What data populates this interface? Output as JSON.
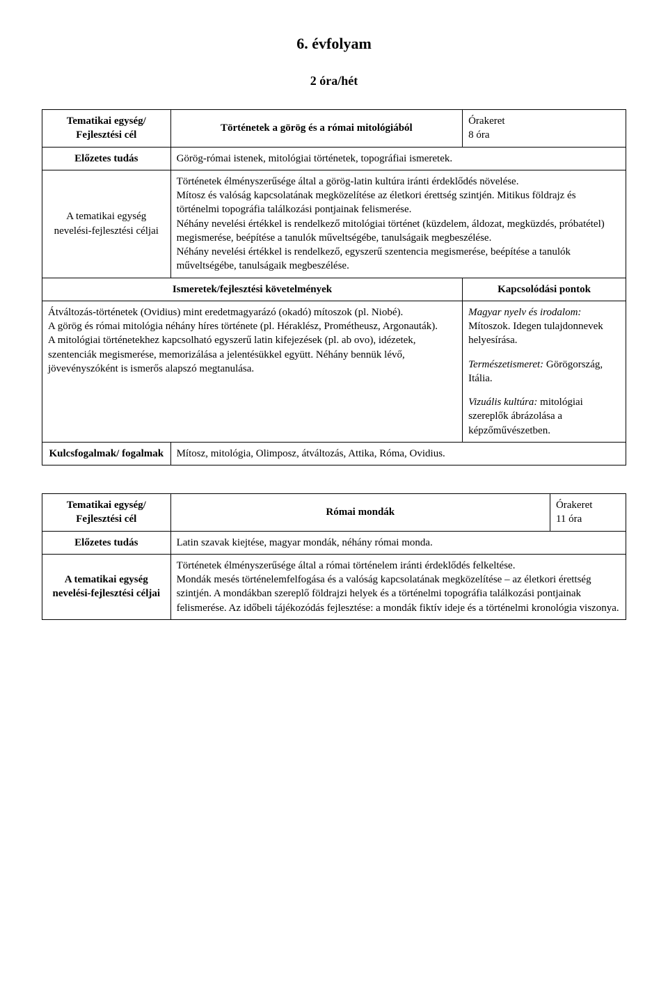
{
  "page": {
    "title": "6. évfolyam",
    "subtitle": "2 óra/hét"
  },
  "table1": {
    "row1": {
      "label": "Tematikai egység/ Fejlesztési cél",
      "title": "Történetek a görög és a római mitológiából",
      "orakeret_label": "Órakeret",
      "orakeret_value": "8 óra"
    },
    "row2": {
      "label": "Előzetes tudás",
      "content": "Görög-római istenek, mitológiai történetek, topográfiai ismeretek."
    },
    "row3": {
      "label": "A tematikai egység nevelési-fejlesztési céljai",
      "content": "Történetek élményszerűsége által a görög-latin kultúra iránti érdeklődés növelése.\nMítosz és valóság kapcsolatának megközelítése az életkori érettség szintjén. Mitikus földrajz és történelmi topográfia találkozási pontjainak felismerése.\nNéhány nevelési értékkel is rendelkező mitológiai történet (küzdelem, áldozat, megküzdés, próbatétel) megismerése, beépítése a tanulók műveltségébe, tanulságaik megbeszélése.\nNéhány nevelési értékkel is rendelkező, egyszerű szentencia megismerése, beépítése a tanulók műveltségébe, tanulságaik megbeszélése."
    },
    "row4": {
      "header_left": "Ismeretek/fejlesztési követelmények",
      "header_right": "Kapcsolódási pontok"
    },
    "row5": {
      "left": "Átváltozás-történetek (Ovidius) mint eredetmagyarázó (okadó) mítoszok (pl. Niobé).\nA görög és római mitológia néhány híres története (pl. Héraklész, Prométheusz, Argonauták).\nA mitológiai történetekhez kapcsolható egyszerű latin kifejezések (pl. ab ovo), idézetek, szentenciák megismerése, memorizálása a jelentésükkel együtt. Néhány bennük lévő, jövevényszóként is ismerős alapszó megtanulása.",
      "right": [
        {
          "italic": "Magyar nyelv és irodalom:",
          "rest": " Mítoszok. Idegen tulajdonnevek helyesírása."
        },
        {
          "italic": "Természetismeret:",
          "rest": " Görögország, Itália."
        },
        {
          "italic": "Vizuális kultúra:",
          "rest": " mitológiai szereplők ábrázolása a képzőművészetben."
        }
      ]
    },
    "row6": {
      "label": "Kulcsfogalmak/ fogalmak",
      "content": "Mítosz, mitológia, Olimposz, átváltozás, Attika, Róma, Ovidius."
    }
  },
  "table2": {
    "row1": {
      "label": "Tematikai egység/ Fejlesztési cél",
      "title": "Római mondák",
      "orakeret_label": "Órakeret",
      "orakeret_value": "11 óra"
    },
    "row2": {
      "label": "Előzetes tudás",
      "content": "Latin szavak kiejtése, magyar mondák, néhány római monda."
    },
    "row3": {
      "label": "A tematikai egység nevelési-fejlesztési céljai",
      "content": "Történetek élményszerűsége által a római történelem iránti érdeklődés felkeltése.\nMondák mesés történelemfelfogása és a valóság kapcsolatának megközelítése – az életkori érettség szintjén. A mondákban szereplő földrajzi helyek és a történelmi topográfia találkozási pontjainak felismerése. Az időbeli tájékozódás fejlesztése: a mondák fiktív ideje és a történelmi kronológia viszonya."
    }
  }
}
